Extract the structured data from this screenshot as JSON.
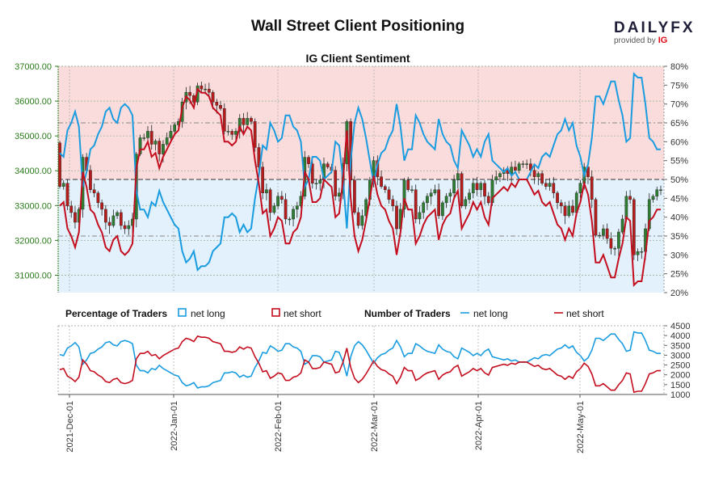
{
  "header": {
    "title": "Wall Street Client Positioning",
    "logo_word": "DAILYFX",
    "logo_sub": "provided by",
    "logo_brand": "IG"
  },
  "chart_data": [
    {
      "type": "candlestick",
      "title": "IG Client Sentiment",
      "ylim": [
        30500,
        37000
      ],
      "yticks": [
        "31000.00",
        "32000.00",
        "33000.00",
        "34000.00",
        "35000.00",
        "36000.00",
        "37000.00"
      ],
      "y2lim": [
        20,
        80
      ],
      "y2ticks": [
        "20%",
        "25%",
        "30%",
        "35%",
        "40%",
        "45%",
        "50%",
        "55%",
        "60%",
        "65%",
        "70%",
        "75%",
        "80%"
      ],
      "background_bands": {
        "upper_color": "#fadcdc",
        "lower_color": "#e2f1fb",
        "split_percent": 50
      },
      "reference_levels_percent": [
        50,
        35,
        65
      ],
      "net_long_percent": [
        57,
        56,
        63,
        65,
        68,
        64,
        48,
        52,
        58,
        59,
        62,
        64,
        68,
        69,
        66,
        65,
        69,
        70,
        69,
        67,
        47,
        42,
        42,
        40,
        44,
        43,
        47,
        44,
        42,
        40,
        38,
        37,
        31,
        28,
        29,
        31,
        26,
        27,
        27,
        28,
        31,
        32,
        33,
        40,
        40,
        41,
        40,
        36,
        38,
        36,
        37,
        45,
        51,
        59,
        58,
        65,
        63,
        60,
        61,
        67,
        67,
        64,
        63,
        60,
        48,
        50,
        56,
        56,
        55,
        50,
        51,
        52,
        60,
        59,
        50,
        37,
        55,
        65,
        69,
        66,
        61,
        55,
        49,
        54,
        57,
        58,
        61,
        63,
        70,
        64,
        55,
        58,
        58,
        67,
        65,
        62,
        60,
        59,
        58,
        66,
        62,
        60,
        59,
        55,
        53,
        63,
        61,
        59,
        56,
        58,
        56,
        60,
        62,
        55,
        54,
        53,
        52,
        53,
        51,
        52,
        50,
        50,
        50,
        52,
        54,
        53,
        56,
        57,
        56,
        59,
        62,
        63,
        66,
        63,
        65,
        59,
        56,
        51,
        54,
        61,
        72,
        72,
        70,
        73,
        76,
        76,
        71,
        67,
        60,
        61,
        78,
        77,
        77,
        70,
        61,
        60,
        58,
        58
      ],
      "net_short_percent": [
        43,
        44,
        37,
        35,
        32,
        36,
        52,
        48,
        42,
        41,
        38,
        36,
        32,
        31,
        34,
        35,
        31,
        30,
        31,
        33,
        53,
        58,
        58,
        60,
        56,
        57,
        53,
        56,
        58,
        60,
        62,
        63,
        69,
        72,
        71,
        69,
        74,
        73,
        73,
        72,
        69,
        68,
        67,
        60,
        60,
        59,
        60,
        64,
        62,
        64,
        63,
        55,
        49,
        41,
        42,
        35,
        37,
        40,
        39,
        33,
        33,
        36,
        37,
        40,
        52,
        50,
        44,
        44,
        45,
        50,
        49,
        48,
        40,
        41,
        50,
        63,
        45,
        35,
        31,
        34,
        39,
        45,
        51,
        46,
        43,
        42,
        39,
        37,
        30,
        36,
        45,
        42,
        42,
        33,
        35,
        38,
        40,
        41,
        42,
        34,
        38,
        40,
        41,
        45,
        47,
        37,
        39,
        41,
        44,
        42,
        44,
        40,
        38,
        45,
        46,
        47,
        48,
        47,
        49,
        48,
        50,
        50,
        50,
        48,
        46,
        47,
        44,
        43,
        44,
        41,
        38,
        37,
        34,
        37,
        35,
        41,
        44,
        49,
        46,
        39,
        28,
        28,
        30,
        27,
        24,
        24,
        29,
        33,
        40,
        39,
        22,
        23,
        23,
        30,
        39,
        40,
        42,
        42
      ]
    },
    {
      "type": "line",
      "legend": {
        "percentage_label": "Percentage of Traders",
        "number_label": "Number of Traders",
        "net_long": "net long",
        "net_short": "net short"
      },
      "ylim": [
        1000,
        4500
      ],
      "yticks": [
        "1000",
        "1500",
        "2000",
        "2500",
        "3000",
        "3500",
        "4000",
        "4500"
      ],
      "series": [
        {
          "name": "net long",
          "color": "#1a9ce0"
        },
        {
          "name": "net short",
          "color": "#c40d1e"
        }
      ]
    }
  ],
  "x_axis": {
    "labels": [
      "2021-Dec-01",
      "2022-Jan-01",
      "2022-Feb-01",
      "2022-Mar-01",
      "2022-Apr-01",
      "2022-May-01"
    ]
  },
  "colors": {
    "net_long": "#1a9ce0",
    "net_short": "#c40d1e",
    "candle_up": "#2e7d32",
    "candle_down": "#b71c1c"
  }
}
